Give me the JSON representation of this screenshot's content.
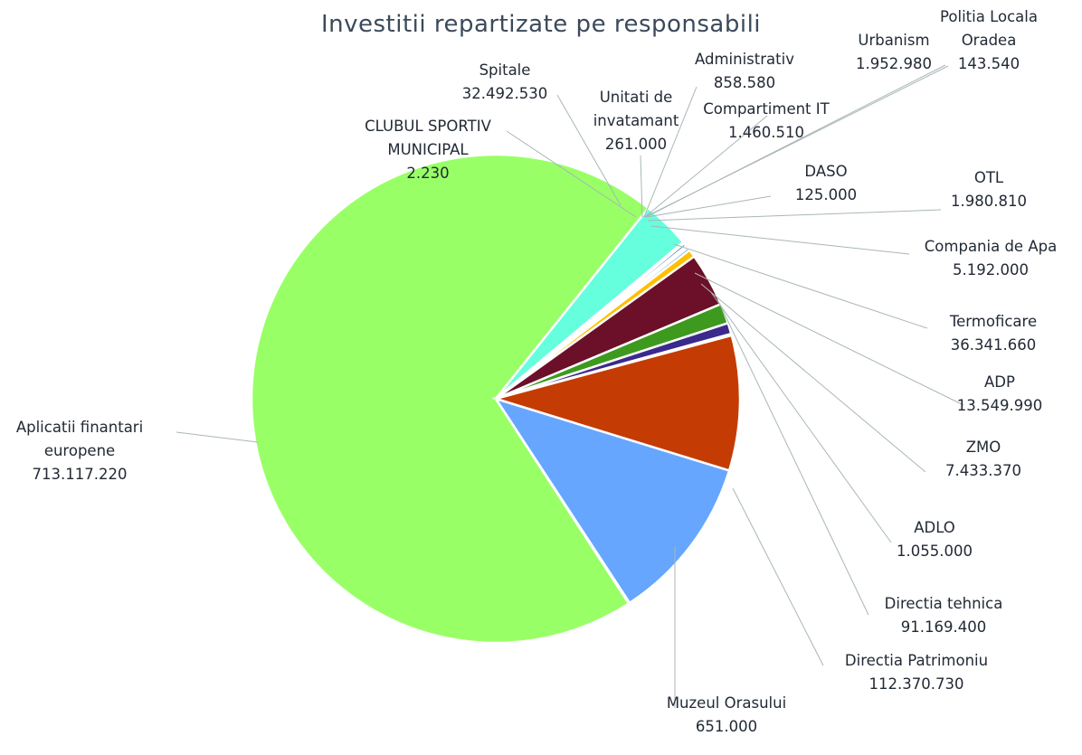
{
  "chart_data": {
    "type": "pie",
    "title": "Investitii repartizate pe responsabili",
    "slices": [
      {
        "name": "Aplicatii finantari europene",
        "label_lines": [
          "Aplicatii finantari",
          "europene"
        ],
        "value_text": "713.117.220",
        "value": 713117220,
        "color": "#99ff66"
      },
      {
        "name": "Spitale",
        "label_lines": [
          "Spitale"
        ],
        "value_text": "32.492.530",
        "value": 32492530,
        "color": "#66ffdd"
      },
      {
        "name": "CLUBUL SPORTIV MUNICIPAL",
        "label_lines": [
          "CLUBUL SPORTIV",
          "MUNICIPAL"
        ],
        "value_text": "2.230",
        "value": 2230,
        "color": "#ffffff"
      },
      {
        "name": "Unitati de invatamant",
        "label_lines": [
          "Unitati de",
          "invatamant"
        ],
        "value_text": "261.000",
        "value": 261000,
        "color": "#cfe8ff"
      },
      {
        "name": "Administrativ",
        "label_lines": [
          "Administrativ"
        ],
        "value_text": "858.580",
        "value": 858580,
        "color": "#ffd966"
      },
      {
        "name": "Urbanism",
        "label_lines": [
          "Urbanism"
        ],
        "value_text": "1.952.980",
        "value": 1952980,
        "color": "#1f4e79"
      },
      {
        "name": "Politia Locala Oradea",
        "label_lines": [
          "Politia Locala",
          "Oradea"
        ],
        "value_text": "143.540",
        "value": 143540,
        "color": "#7f7f7f"
      },
      {
        "name": "Compartiment IT",
        "label_lines": [
          "Compartiment IT"
        ],
        "value_text": "1.460.510",
        "value": 1460510,
        "color": "#2e75b6"
      },
      {
        "name": "DASO",
        "label_lines": [
          "DASO"
        ],
        "value_text": "125.000",
        "value": 125000,
        "color": "#c00000"
      },
      {
        "name": "OTL",
        "label_lines": [
          "OTL"
        ],
        "value_text": "1.980.810",
        "value": 1980810,
        "color": "#5b9bd5"
      },
      {
        "name": "Compania de Apa",
        "label_lines": [
          "Compania de Apa"
        ],
        "value_text": "5.192.000",
        "value": 5192000,
        "color": "#ffc000"
      },
      {
        "name": "Termoficare",
        "label_lines": [
          "Termoficare"
        ],
        "value_text": "36.341.660",
        "value": 36341660,
        "color": "#6b1028"
      },
      {
        "name": "ADP",
        "label_lines": [
          "ADP"
        ],
        "value_text": "13.549.990",
        "value": 13549990,
        "color": "#3d9a1e"
      },
      {
        "name": "ZMO",
        "label_lines": [
          "ZMO"
        ],
        "value_text": "7.433.370",
        "value": 7433370,
        "color": "#3b2a8c"
      },
      {
        "name": "ADLO",
        "label_lines": [
          "ADLO"
        ],
        "value_text": "1.055.000",
        "value": 1055000,
        "color": "#8fbfe0"
      },
      {
        "name": "Directia tehnica",
        "label_lines": [
          "Directia tehnica"
        ],
        "value_text": "91.169.400",
        "value": 91169400,
        "color": "#c43c04"
      },
      {
        "name": "Directia Patrimoniu",
        "label_lines": [
          "Directia Patrimoniu"
        ],
        "value_text": "112.370.730",
        "value": 112370730,
        "color": "#66a6ff"
      },
      {
        "name": "Muzeul Orasului",
        "label_lines": [
          "Muzeul Orasului"
        ],
        "value_text": "651.000",
        "value": 651000,
        "color": "#c9c9c9"
      }
    ]
  }
}
